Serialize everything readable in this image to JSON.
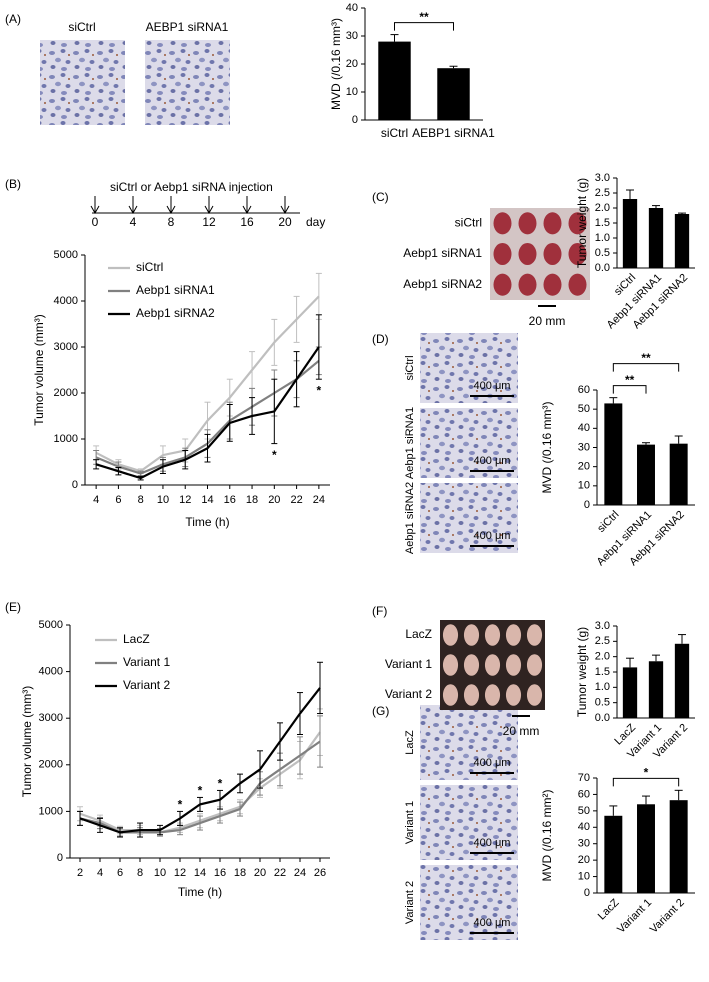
{
  "panel_labels": [
    "(A)",
    "(B)",
    "(C)",
    "(D)",
    "(E)",
    "(F)",
    "(G)"
  ],
  "images": {
    "A": {
      "labels": [
        "siCtrl",
        "AEBP1 siRNA1"
      ]
    },
    "C": {
      "labels": [
        "siCtrl",
        "Aebp1 siRNA1",
        "Aebp1 siRNA2"
      ],
      "scale": "20 mm"
    },
    "D": {
      "labels": [
        "siCtrl",
        "Aebp1 siRNA1",
        "Aebp1 siRNA2"
      ],
      "scale": "400 μm"
    },
    "F": {
      "labels": [
        "LacZ",
        "Variant 1",
        "Variant 2"
      ],
      "scale": "20 mm"
    },
    "G": {
      "labels": [
        "LacZ",
        "Variant 1",
        "Variant 2"
      ],
      "scale": "400 μm"
    }
  },
  "timeline": {
    "label": "siCtrl or Aebp1 siRNA injection",
    "days": [
      0,
      4,
      8,
      12,
      16,
      20
    ],
    "unit": "day"
  },
  "chart_data": [
    {
      "type": "bar",
      "ylabel": "MVD (/0.16 mm³)",
      "categories": [
        "siCtrl",
        "AEBP1 siRNA1"
      ],
      "values": [
        28,
        18.5
      ],
      "errors": [
        2.5,
        0.7
      ],
      "color": "#000000",
      "ylim": [
        0,
        40
      ],
      "yticks": [
        0,
        10,
        20,
        30,
        40
      ],
      "brackets": [
        {
          "text": "**"
        }
      ]
    },
    {
      "type": "line",
      "ylabel": "Tumor volume (mm³)",
      "xlabel": "Time (h)",
      "x": [
        4,
        6,
        8,
        10,
        12,
        14,
        16,
        18,
        20,
        22,
        24
      ],
      "series": [
        {
          "name": "siCtrl",
          "color": "#bfbfbf",
          "values": [
            700,
            450,
            300,
            650,
            750,
            1400,
            1900,
            2500,
            3100,
            3600,
            4100
          ],
          "errors": [
            150,
            100,
            50,
            200,
            250,
            400,
            400,
            400,
            500,
            500,
            500
          ]
        },
        {
          "name": "Aebp1 siRNA1",
          "color": "#808080",
          "values": [
            600,
            400,
            250,
            450,
            600,
            900,
            1400,
            1700,
            2000,
            2300,
            2700
          ],
          "errors": [
            150,
            100,
            50,
            150,
            200,
            300,
            400,
            400,
            500,
            400,
            300
          ]
        },
        {
          "name": "Aebp1 siRNA2",
          "color": "#000000",
          "values": [
            450,
            300,
            150,
            400,
            550,
            800,
            1350,
            1500,
            1600,
            2300,
            3000
          ],
          "errors": [
            100,
            80,
            40,
            150,
            200,
            300,
            400,
            400,
            700,
            600,
            700
          ]
        }
      ],
      "xlim": [
        3,
        25
      ],
      "ylim": [
        0,
        5000
      ],
      "xticks": [
        4,
        6,
        8,
        10,
        12,
        14,
        16,
        18,
        20,
        22,
        24
      ],
      "yticks": [
        0,
        1000,
        2000,
        3000,
        4000,
        5000
      ],
      "legend": "upper left",
      "annotations": [
        {
          "x": 20,
          "text": "*"
        },
        {
          "x": 24,
          "text": "*"
        }
      ]
    },
    {
      "type": "bar",
      "ylabel": "Tumor weight (g)",
      "categories": [
        "siCtrl",
        "Aebp1 siRNA1",
        "Aebp1 siRNA2"
      ],
      "values": [
        2.3,
        2.0,
        1.8
      ],
      "errors": [
        0.3,
        0.08,
        0.03
      ],
      "color": "#000000",
      "ylim": [
        0,
        3
      ],
      "yticks": [
        {
          "value": 0,
          "label": "0.0"
        },
        {
          "value": 0.5,
          "label": "0.5"
        },
        {
          "value": 1,
          "label": "1.0"
        },
        {
          "value": 1.5,
          "label": "1.5"
        },
        {
          "value": 2,
          "label": "2.0"
        },
        {
          "value": 2.5,
          "label": "2.5"
        },
        {
          "value": 3,
          "label": "3.0"
        }
      ],
      "brackets": []
    },
    {
      "type": "bar",
      "ylabel": "MVD (/0.16 mm³)",
      "categories": [
        "siCtrl",
        "Aebp1 siRNA1",
        "Aebp1 siRNA2"
      ],
      "values": [
        53,
        31.5,
        32
      ],
      "errors": [
        3,
        1,
        4
      ],
      "color": "#000000",
      "ylim": [
        0,
        60
      ],
      "yticks": [
        0,
        10,
        20,
        30,
        40,
        50,
        60
      ],
      "brackets": [
        {
          "text": "**"
        },
        {
          "text": "**"
        }
      ]
    },
    {
      "type": "line",
      "ylabel": "Tumor volume (mm³)",
      "xlabel": "Time (h)",
      "x": [
        2,
        4,
        6,
        8,
        10,
        12,
        14,
        16,
        18,
        20,
        22,
        24,
        26
      ],
      "series": [
        {
          "name": "LacZ",
          "color": "#bfbfbf",
          "values": [
            950,
            800,
            600,
            600,
            550,
            650,
            800,
            950,
            1100,
            1500,
            1800,
            2100,
            2700
          ],
          "errors": [
            150,
            120,
            80,
            100,
            80,
            100,
            150,
            150,
            150,
            200,
            300,
            400,
            500
          ]
        },
        {
          "name": "Variant 1",
          "color": "#808080",
          "values": [
            850,
            750,
            550,
            550,
            550,
            600,
            750,
            900,
            1050,
            1600,
            1900,
            2200,
            2500
          ],
          "errors": [
            150,
            120,
            80,
            100,
            80,
            100,
            150,
            150,
            150,
            250,
            350,
            400,
            550
          ]
        },
        {
          "name": "Variant 2",
          "color": "#000000",
          "values": [
            850,
            700,
            550,
            600,
            600,
            850,
            1150,
            1250,
            1600,
            1900,
            2500,
            3100,
            3650
          ],
          "errors": [
            150,
            150,
            100,
            150,
            100,
            150,
            150,
            200,
            200,
            400,
            400,
            450,
            550
          ]
        }
      ],
      "xlim": [
        1,
        27
      ],
      "ylim": [
        0,
        5000
      ],
      "xticks": [
        2,
        4,
        6,
        8,
        10,
        12,
        14,
        16,
        18,
        20,
        22,
        24,
        26
      ],
      "yticks": [
        0,
        1000,
        2000,
        3000,
        4000,
        5000
      ],
      "legend": "upper left",
      "annotations": [
        {
          "x": 12,
          "text": "*"
        },
        {
          "x": 14,
          "text": "*"
        },
        {
          "x": 16,
          "text": "*"
        }
      ]
    },
    {
      "type": "bar",
      "ylabel": "Tumor weight (g)",
      "categories": [
        "LacZ",
        "Variant 1",
        "Variant 2"
      ],
      "values": [
        1.65,
        1.85,
        2.42
      ],
      "errors": [
        0.3,
        0.2,
        0.3
      ],
      "color": "#000000",
      "ylim": [
        0,
        3
      ],
      "yticks": [
        {
          "value": 0,
          "label": "0.0"
        },
        {
          "value": 0.5,
          "label": "0.5"
        },
        {
          "value": 1,
          "label": "1.0"
        },
        {
          "value": 1.5,
          "label": "1.5"
        },
        {
          "value": 2,
          "label": "2.0"
        },
        {
          "value": 2.5,
          "label": "2.5"
        },
        {
          "value": 3,
          "label": "3.0"
        }
      ],
      "brackets": []
    },
    {
      "type": "bar",
      "ylabel": "MVD (/0.16 mm²)",
      "categories": [
        "LacZ",
        "Variant 1",
        "Variant 2"
      ],
      "values": [
        47,
        54,
        56.5
      ],
      "errors": [
        6,
        5,
        6
      ],
      "color": "#000000",
      "ylim": [
        0,
        70
      ],
      "yticks": [
        0,
        10,
        20,
        30,
        40,
        50,
        60,
        70
      ],
      "brackets": [
        {
          "text": "*"
        }
      ]
    }
  ]
}
